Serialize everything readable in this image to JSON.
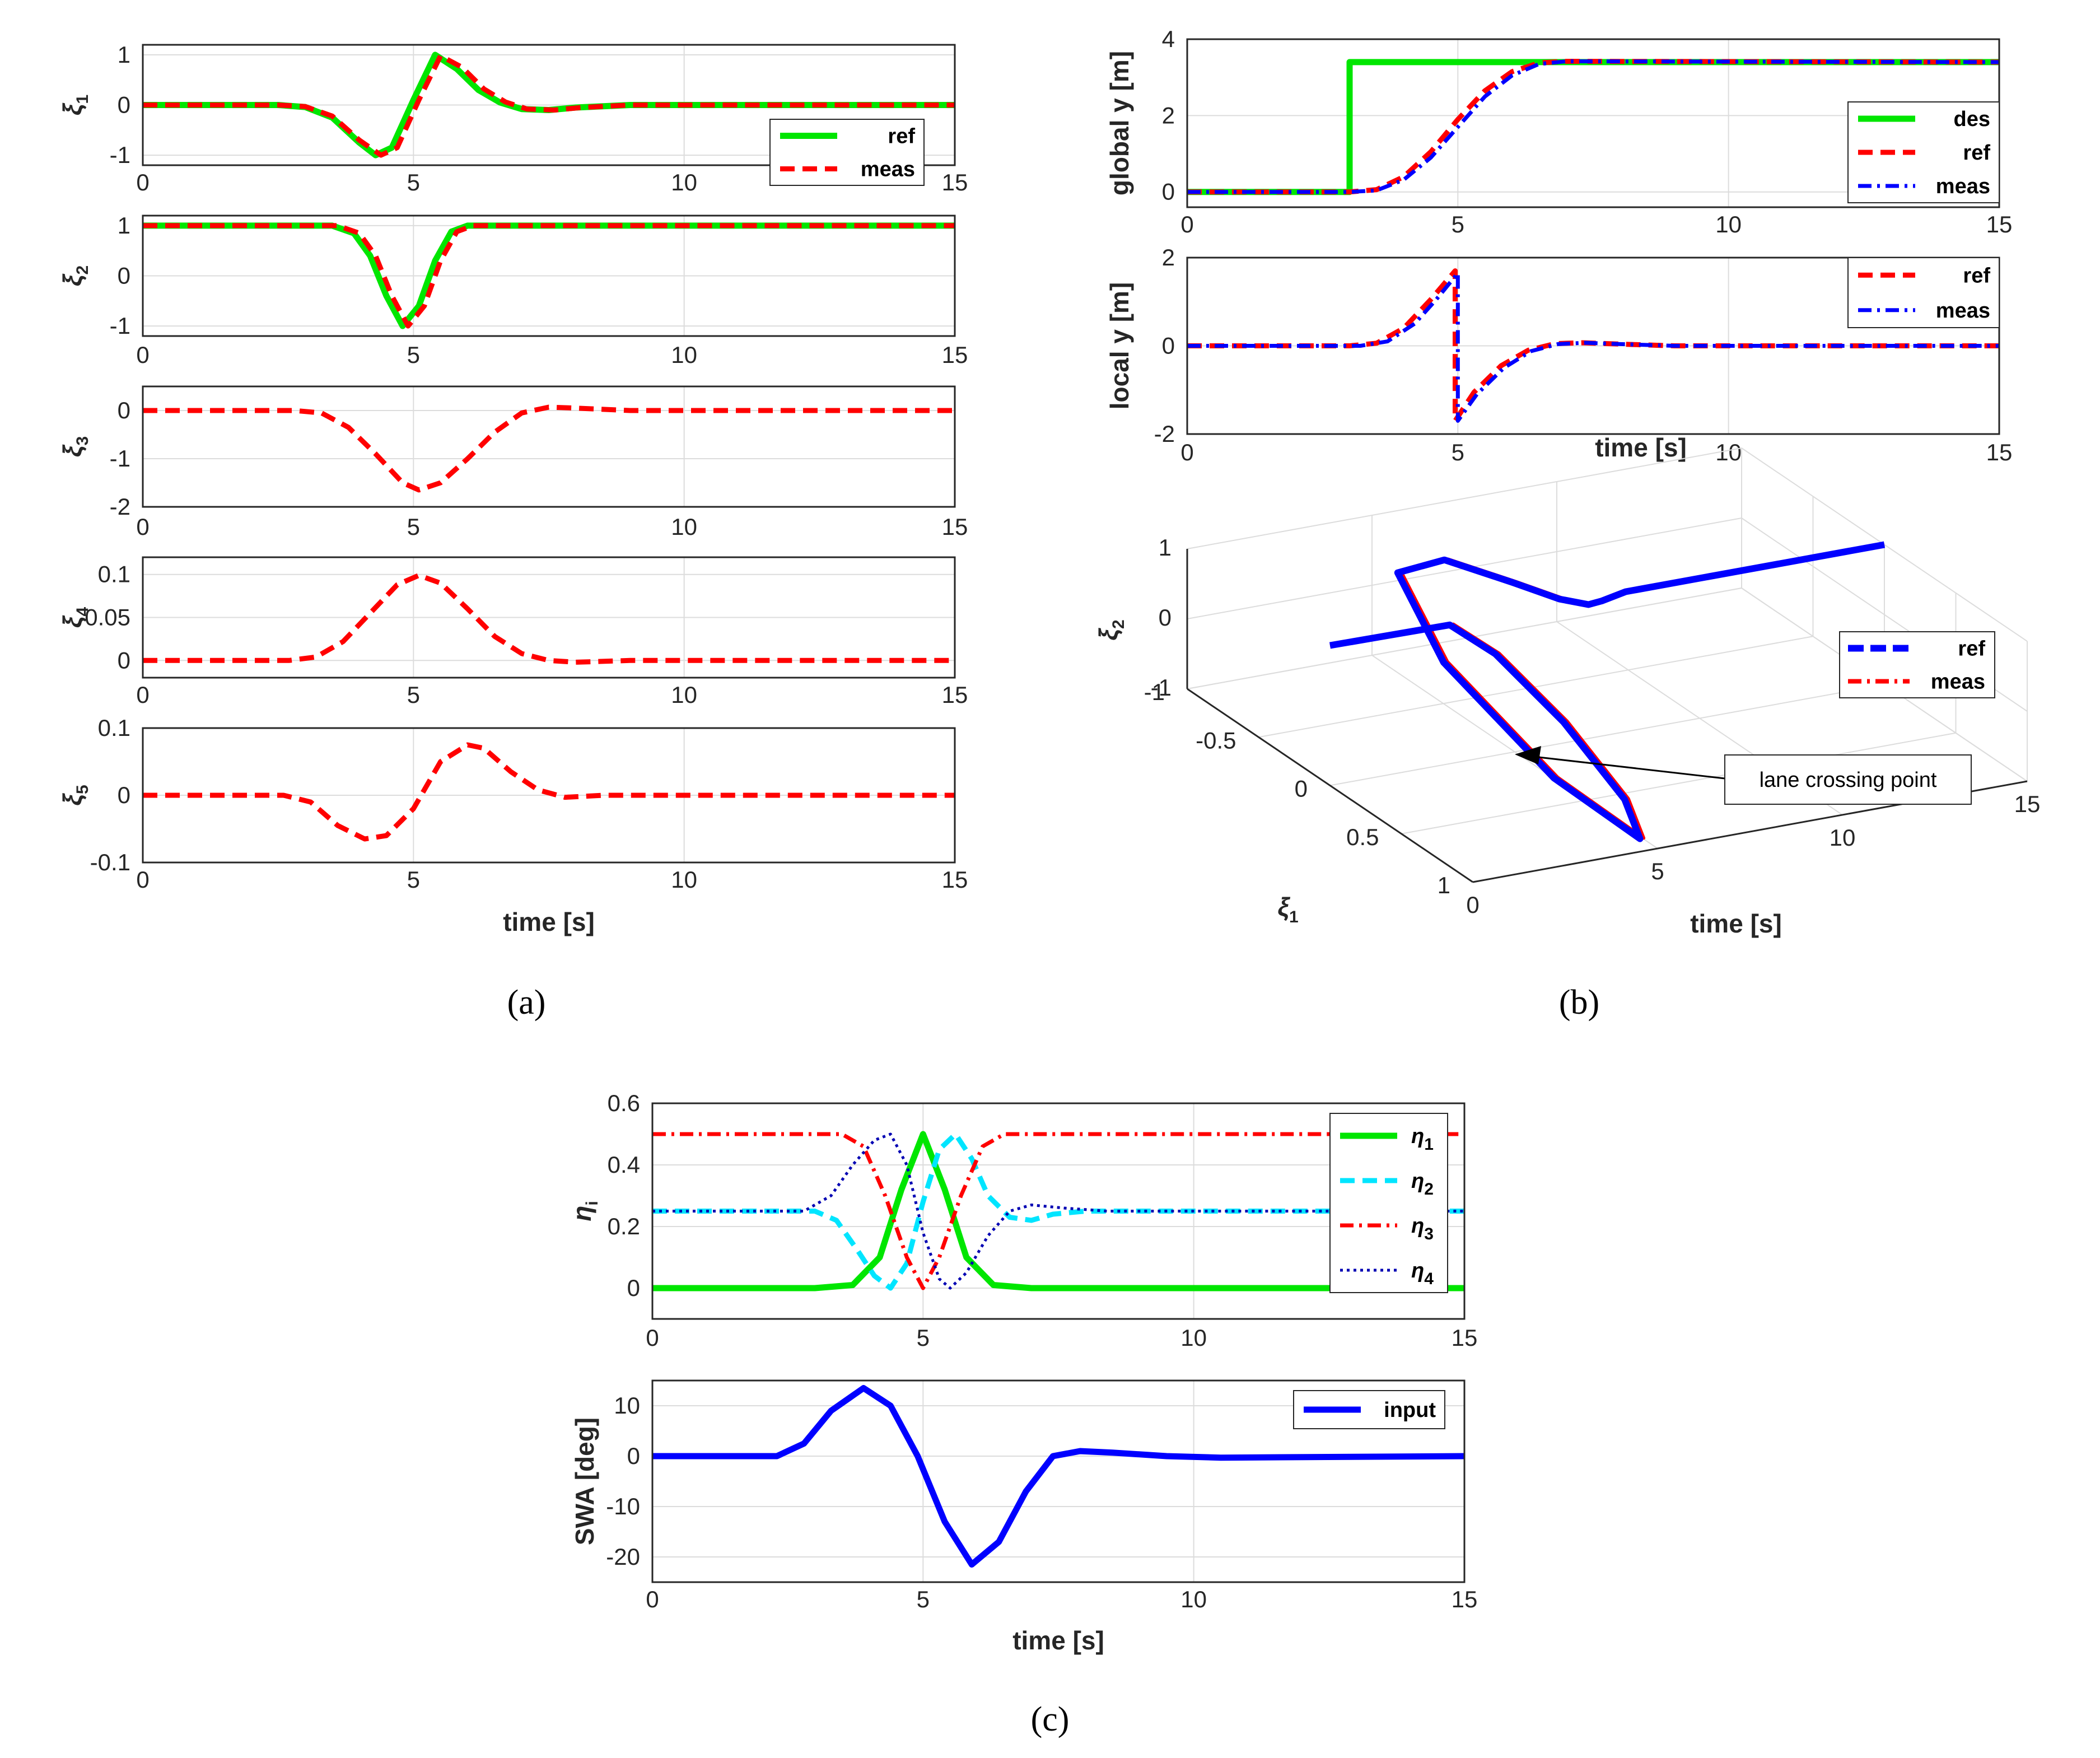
{
  "figure": {
    "caption_a": "(a)",
    "caption_b": "(b)",
    "caption_c": "(c)",
    "annotation": "lane crossing point"
  },
  "colors": {
    "green": "#00e600",
    "red": "#ff0000",
    "blue": "#0000ff",
    "cyan": "#00e5ff",
    "navy": "#0000b3",
    "grid": "#dcdcdc",
    "axis": "#262626"
  },
  "chart_data": [
    {
      "id": "a1",
      "type": "line",
      "ylabel": "ξ",
      "ylabel_sub": "1",
      "xlabel": "",
      "xlim": [
        0,
        15
      ],
      "ylim": [
        -1.2,
        1.2
      ],
      "xticks": [
        "0",
        "5",
        "10",
        "15"
      ],
      "yticks": [
        "-1",
        "0",
        "1"
      ],
      "legend": [
        "ref",
        "meas"
      ],
      "series": [
        {
          "name": "ref",
          "color": "green",
          "style": "solid",
          "x": [
            0,
            2.5,
            3,
            3.5,
            4,
            4.3,
            4.6,
            5,
            5.4,
            5.8,
            6.2,
            6.6,
            7,
            7.5,
            8,
            9,
            15
          ],
          "y": [
            0,
            0,
            -0.04,
            -0.25,
            -0.75,
            -1,
            -0.85,
            0.1,
            1,
            0.72,
            0.3,
            0.05,
            -0.08,
            -0.1,
            -0.05,
            0,
            0
          ]
        },
        {
          "name": "meas",
          "color": "red",
          "style": "dash",
          "x": [
            0,
            2.5,
            3,
            3.5,
            4,
            4.4,
            4.7,
            5.1,
            5.5,
            5.9,
            6.3,
            6.7,
            7.1,
            7.6,
            8.1,
            9,
            15
          ],
          "y": [
            0,
            0,
            -0.03,
            -0.22,
            -0.7,
            -1,
            -0.85,
            0.1,
            0.98,
            0.75,
            0.32,
            0.06,
            -0.08,
            -0.1,
            -0.05,
            0,
            0
          ]
        }
      ]
    },
    {
      "id": "a2",
      "type": "line",
      "ylabel": "ξ",
      "ylabel_sub": "2",
      "xlabel": "",
      "xlim": [
        0,
        15
      ],
      "ylim": [
        -1.2,
        1.2
      ],
      "xticks": [
        "0",
        "5",
        "10",
        "15"
      ],
      "yticks": [
        "-1",
        "0",
        "1"
      ],
      "series": [
        {
          "name": "ref",
          "color": "green",
          "style": "solid",
          "x": [
            0,
            3.5,
            3.9,
            4.2,
            4.5,
            4.8,
            5.1,
            5.4,
            5.7,
            6,
            15
          ],
          "y": [
            1,
            1,
            0.85,
            0.4,
            -0.4,
            -1,
            -0.6,
            0.3,
            0.88,
            1,
            1
          ]
        },
        {
          "name": "meas",
          "color": "red",
          "style": "dash",
          "x": [
            0,
            3.6,
            4,
            4.3,
            4.6,
            4.9,
            5.2,
            5.5,
            5.8,
            6.1,
            15
          ],
          "y": [
            1,
            1,
            0.85,
            0.4,
            -0.4,
            -1,
            -0.6,
            0.3,
            0.88,
            1,
            1
          ]
        }
      ]
    },
    {
      "id": "a3",
      "type": "line",
      "ylabel": "ξ",
      "ylabel_sub": "3",
      "xlabel": "",
      "xlim": [
        0,
        15
      ],
      "ylim": [
        -2,
        0.5
      ],
      "xticks": [
        "0",
        "5",
        "10",
        "15"
      ],
      "yticks": [
        "-2",
        "-1",
        "0"
      ],
      "series": [
        {
          "name": "meas",
          "color": "red",
          "style": "dash",
          "x": [
            0,
            2.8,
            3.3,
            3.8,
            4.3,
            4.8,
            5.1,
            5.5,
            6,
            6.5,
            7,
            7.5,
            8,
            9,
            10,
            15
          ],
          "y": [
            0,
            0,
            -0.05,
            -0.35,
            -0.9,
            -1.5,
            -1.65,
            -1.5,
            -1,
            -0.45,
            -0.05,
            0.07,
            0.05,
            0,
            0,
            0
          ]
        }
      ]
    },
    {
      "id": "a4",
      "type": "line",
      "ylabel": "ξ",
      "ylabel_sub": "4",
      "xlabel": "",
      "xlim": [
        0,
        15
      ],
      "ylim": [
        -0.02,
        0.12
      ],
      "xticks": [
        "0",
        "5",
        "10",
        "15"
      ],
      "yticks": [
        "0",
        "0.05",
        "0.1"
      ],
      "series": [
        {
          "name": "meas",
          "color": "red",
          "style": "dash",
          "x": [
            0,
            2.7,
            3.2,
            3.7,
            4.2,
            4.7,
            5.1,
            5.5,
            6,
            6.5,
            7,
            7.5,
            8,
            9,
            15
          ],
          "y": [
            0,
            0,
            0.004,
            0.022,
            0.055,
            0.088,
            0.099,
            0.09,
            0.06,
            0.028,
            0.008,
            0,
            -0.002,
            0,
            0
          ]
        }
      ]
    },
    {
      "id": "a5",
      "type": "line",
      "ylabel": "ξ",
      "ylabel_sub": "5",
      "xlabel": "time [s]",
      "xlim": [
        0,
        15
      ],
      "ylim": [
        -0.1,
        0.1
      ],
      "xticks": [
        "0",
        "5",
        "10",
        "15"
      ],
      "yticks": [
        "-0.1",
        "0",
        "0.1"
      ],
      "series": [
        {
          "name": "meas",
          "color": "red",
          "style": "dash",
          "x": [
            0,
            2.6,
            3.1,
            3.6,
            4.1,
            4.5,
            5,
            5.5,
            6,
            6.3,
            6.8,
            7.3,
            7.8,
            8.5,
            15
          ],
          "y": [
            0,
            0,
            -0.01,
            -0.045,
            -0.065,
            -0.06,
            -0.02,
            0.05,
            0.075,
            0.07,
            0.035,
            0.008,
            -0.003,
            0,
            0
          ]
        }
      ]
    },
    {
      "id": "b1",
      "type": "line",
      "ylabel": "global y [m]",
      "xlabel": "",
      "xlim": [
        0,
        15
      ],
      "ylim": [
        -0.4,
        4
      ],
      "xticks": [
        "0",
        "5",
        "10",
        "15"
      ],
      "yticks": [
        "0",
        "2",
        "4"
      ],
      "legend": [
        "des",
        "ref",
        "meas"
      ],
      "series": [
        {
          "name": "des",
          "color": "green",
          "style": "solid",
          "x": [
            0,
            3,
            3,
            15
          ],
          "y": [
            0,
            0,
            3.4,
            3.4
          ]
        },
        {
          "name": "ref",
          "color": "red",
          "style": "dash",
          "x": [
            0,
            3,
            3.5,
            4,
            4.5,
            5,
            5.5,
            6,
            6.5,
            7,
            15
          ],
          "y": [
            0,
            0,
            0.06,
            0.4,
            1.05,
            1.9,
            2.65,
            3.15,
            3.38,
            3.42,
            3.4
          ]
        },
        {
          "name": "meas",
          "color": "blue",
          "style": "dashdot",
          "x": [
            0,
            3,
            3.5,
            4,
            4.5,
            5,
            5.5,
            6,
            6.5,
            7,
            15
          ],
          "y": [
            0,
            0,
            0.04,
            0.32,
            0.9,
            1.7,
            2.5,
            3.05,
            3.35,
            3.42,
            3.4
          ]
        }
      ]
    },
    {
      "id": "b2",
      "type": "line",
      "ylabel": "local y [m]",
      "xlabel": "time [s]",
      "xlim": [
        0,
        15
      ],
      "ylim": [
        -2,
        2
      ],
      "xticks": [
        "0",
        "5",
        "10",
        "15"
      ],
      "yticks": [
        "-2",
        "0",
        "2"
      ],
      "legend": [
        "ref",
        "meas"
      ],
      "series": [
        {
          "name": "ref",
          "color": "red",
          "style": "dash",
          "x": [
            0,
            3,
            3.5,
            4,
            4.5,
            4.95,
            4.95,
            5.3,
            5.8,
            6.3,
            6.8,
            7.3,
            8,
            9,
            15
          ],
          "y": [
            0,
            0,
            0.06,
            0.4,
            1.05,
            1.7,
            -1.7,
            -1.05,
            -0.45,
            -0.1,
            0.05,
            0.07,
            0.04,
            0,
            0
          ]
        },
        {
          "name": "meas",
          "color": "blue",
          "style": "dashdot",
          "x": [
            0,
            3.2,
            3.7,
            4.2,
            4.6,
            5,
            5,
            5.35,
            5.85,
            6.35,
            6.85,
            7.35,
            8,
            9,
            15
          ],
          "y": [
            0,
            0,
            0.1,
            0.5,
            1.05,
            1.65,
            -1.7,
            -1.1,
            -0.5,
            -0.12,
            0.04,
            0.07,
            0.04,
            0,
            0
          ]
        }
      ]
    },
    {
      "id": "b3",
      "type": "line3d",
      "xlabel": "time [s]",
      "ylabel": "ξ",
      "ylabel_sub": "1",
      "zlabel": "ξ",
      "zlabel_sub": "2",
      "t_ticks": [
        "0",
        "5",
        "10",
        "15"
      ],
      "xi1_ticks": [
        "-1",
        "-0.5",
        "0",
        "0.5",
        "1"
      ],
      "xi2_ticks": [
        "-1",
        "0",
        "1"
      ],
      "legend": [
        "ref",
        "meas"
      ],
      "series": [
        {
          "name": "ref",
          "color": "blue",
          "style": "dash",
          "t": [
            0,
            3.2,
            3.7,
            4,
            4.3,
            4.6,
            4.9,
            5.2,
            5.5,
            5.8,
            6.1,
            6.4,
            6.8,
            7.2,
            8,
            15
          ],
          "xi1": [
            0,
            0.01,
            0.2,
            0.6,
            0.95,
            0.98,
            0.3,
            -0.55,
            -0.95,
            -0.7,
            -0.3,
            -0.05,
            0.05,
            0.04,
            0,
            0
          ],
          "xi2": [
            1,
            1,
            0.8,
            0.35,
            -0.3,
            -0.85,
            -0.95,
            -0.5,
            0.2,
            0.7,
            0.9,
            0.98,
            1,
            1,
            1,
            1
          ]
        },
        {
          "name": "meas",
          "color": "red",
          "style": "dashdot",
          "t": [
            0,
            3.3,
            3.8,
            4.1,
            4.4,
            4.7,
            5,
            5.3,
            5.6,
            5.9,
            6.2,
            6.5,
            6.9,
            7.3,
            8,
            15
          ],
          "xi1": [
            0,
            0.01,
            0.2,
            0.6,
            0.95,
            0.98,
            0.3,
            -0.55,
            -0.95,
            -0.7,
            -0.3,
            -0.05,
            0.05,
            0.04,
            0,
            0
          ],
          "xi2": [
            1,
            1,
            0.8,
            0.35,
            -0.3,
            -0.85,
            -0.95,
            -0.5,
            0.2,
            0.7,
            0.9,
            0.98,
            1,
            1,
            1,
            1
          ]
        }
      ]
    },
    {
      "id": "c1",
      "type": "line",
      "ylabel": "η",
      "ylabel_sub": "i",
      "xlabel": "",
      "xlim": [
        0,
        15
      ],
      "ylim": [
        -0.1,
        0.6
      ],
      "xticks": [
        "0",
        "5",
        "10",
        "15"
      ],
      "yticks": [
        "0",
        "0.2",
        "0.4",
        "0.6"
      ],
      "legend": [
        "η1",
        "η2",
        "η3",
        "η4"
      ],
      "series": [
        {
          "name": "η1",
          "color": "green",
          "style": "solid",
          "x": [
            0,
            3,
            3.7,
            4.2,
            4.6,
            5,
            5.4,
            5.8,
            6.3,
            7,
            8,
            15
          ],
          "y": [
            0,
            0,
            0.01,
            0.1,
            0.32,
            0.5,
            0.32,
            0.1,
            0.01,
            0,
            0,
            0
          ]
        },
        {
          "name": "η2",
          "color": "cyan",
          "style": "dash",
          "x": [
            0,
            3,
            3.4,
            3.8,
            4.1,
            4.4,
            4.7,
            5,
            5.3,
            5.6,
            5.9,
            6.2,
            6.6,
            7,
            7.4,
            8,
            15
          ],
          "y": [
            0.25,
            0.25,
            0.22,
            0.12,
            0.04,
            0,
            0.08,
            0.28,
            0.45,
            0.5,
            0.42,
            0.3,
            0.23,
            0.22,
            0.24,
            0.25,
            0.25
          ]
        },
        {
          "name": "η3",
          "color": "red",
          "style": "dashdot",
          "x": [
            0,
            3.5,
            3.9,
            4.3,
            4.7,
            5,
            5.3,
            5.7,
            6.1,
            6.5,
            15
          ],
          "y": [
            0.5,
            0.5,
            0.46,
            0.3,
            0.1,
            0,
            0.1,
            0.3,
            0.46,
            0.5,
            0.5
          ]
        },
        {
          "name": "η4",
          "color": "navy",
          "style": "dot",
          "x": [
            0,
            2.8,
            3.3,
            3.7,
            4.1,
            4.4,
            4.7,
            5,
            5.3,
            5.5,
            5.8,
            6.2,
            6.6,
            7,
            7.6,
            8.4,
            9.5,
            15
          ],
          "y": [
            0.25,
            0.25,
            0.3,
            0.4,
            0.48,
            0.5,
            0.4,
            0.18,
            0.03,
            0,
            0.05,
            0.17,
            0.25,
            0.27,
            0.26,
            0.25,
            0.25,
            0.25
          ]
        }
      ]
    },
    {
      "id": "c2",
      "type": "line",
      "ylabel": "SWA [deg]",
      "xlabel": "time [s]",
      "xlim": [
        0,
        15
      ],
      "ylim": [
        -25,
        15
      ],
      "xticks": [
        "0",
        "5",
        "10",
        "15"
      ],
      "yticks": [
        "-20",
        "-10",
        "0",
        "10"
      ],
      "legend": [
        "input"
      ],
      "series": [
        {
          "name": "input",
          "color": "blue",
          "style": "solid",
          "x": [
            0,
            2.3,
            2.8,
            3.3,
            3.9,
            4.4,
            4.9,
            5.4,
            5.9,
            6.4,
            6.9,
            7.4,
            7.9,
            8.5,
            9.5,
            10.5,
            15
          ],
          "y": [
            0,
            0,
            2.5,
            9,
            13.5,
            10,
            0,
            -13,
            -21.5,
            -17,
            -7,
            0,
            1,
            0.7,
            0,
            -0.3,
            0
          ]
        }
      ]
    }
  ]
}
